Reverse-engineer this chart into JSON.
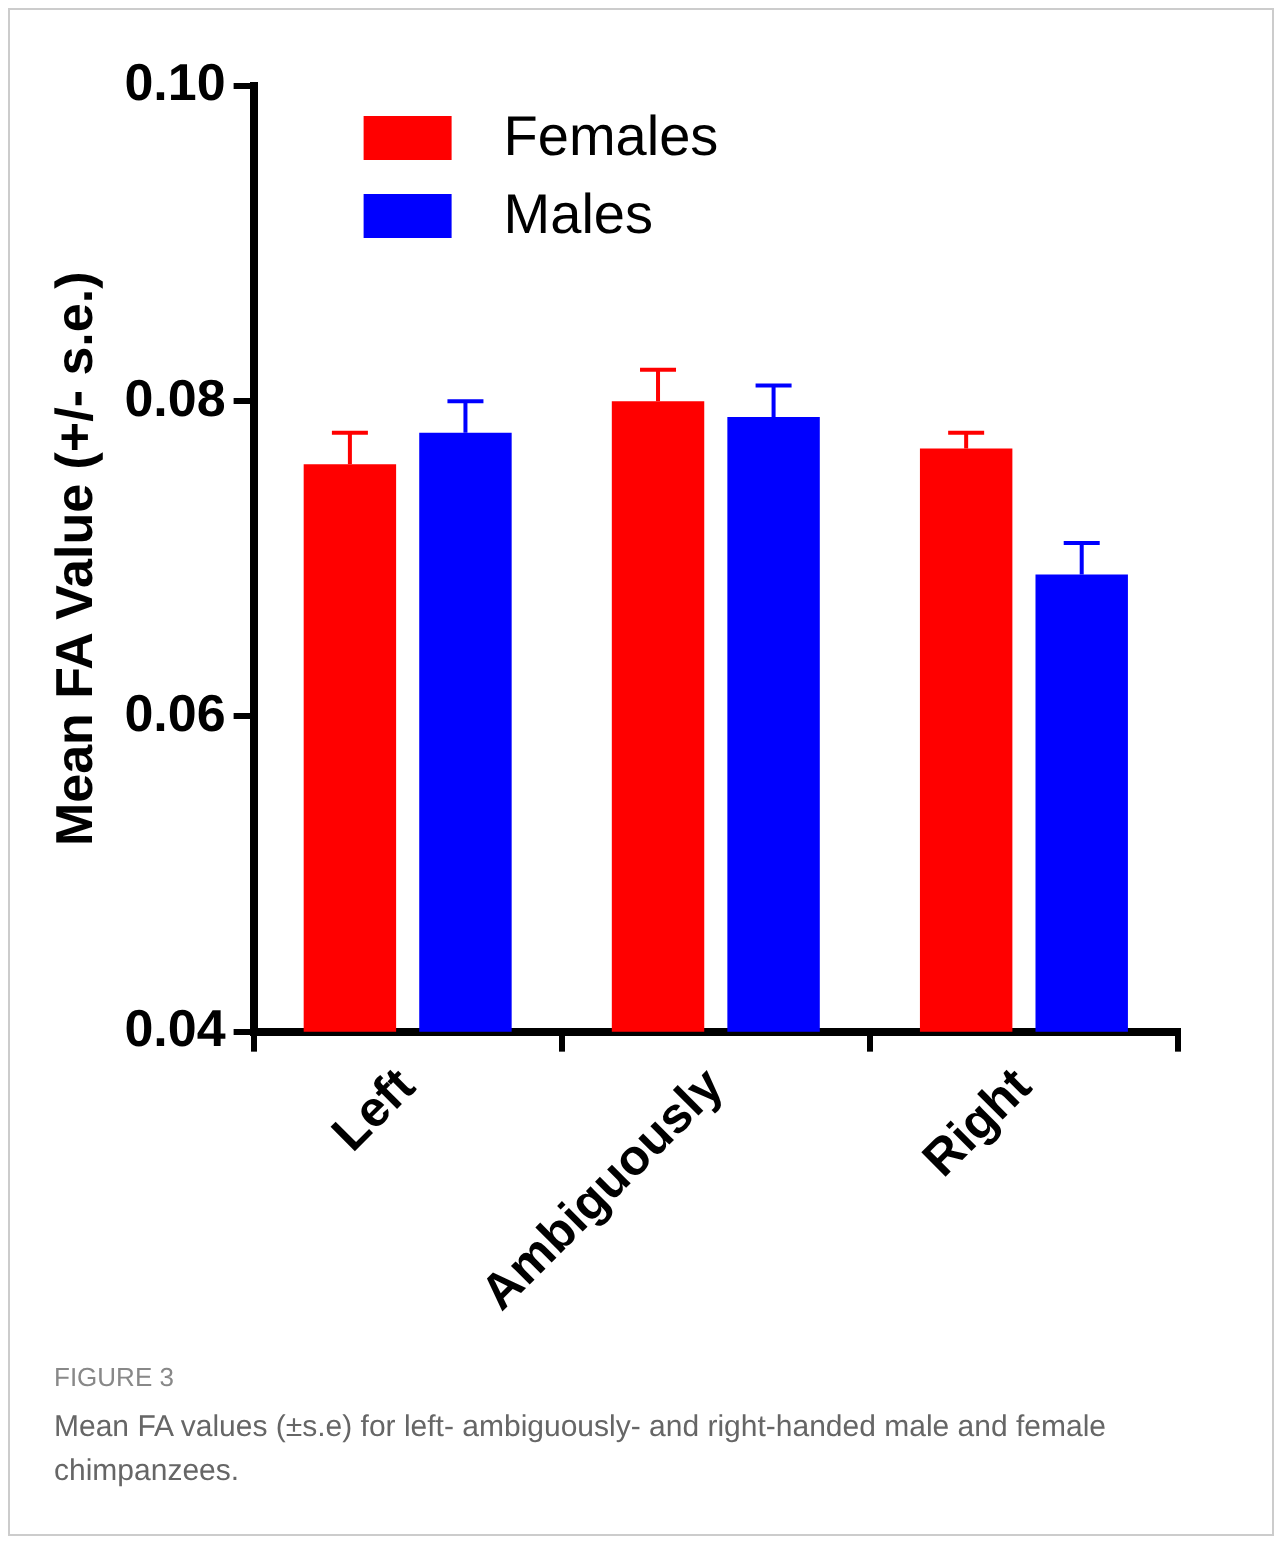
{
  "chart_data": {
    "type": "bar",
    "ylabel": "Mean FA Value (+/- s.e.)",
    "categories": [
      "Left",
      "Ambiguously",
      "Right"
    ],
    "series": [
      {
        "name": "Females",
        "color": "#ff0000",
        "values": [
          0.076,
          0.08,
          0.077
        ],
        "errors": [
          [
            0.076,
            0.078
          ],
          [
            0.08,
            0.082
          ],
          [
            0.077,
            0.078
          ]
        ]
      },
      {
        "name": "Males",
        "color": "#0000ff",
        "values": [
          0.078,
          0.079,
          0.069
        ],
        "errors": [
          [
            0.078,
            0.08
          ],
          [
            0.079,
            0.081
          ],
          [
            0.069,
            0.071
          ]
        ]
      }
    ],
    "ylim": [
      0.04,
      0.1
    ],
    "yticks": [
      0.04,
      0.06,
      0.08,
      {
        "value": 0.1,
        "label": "0.10"
      }
    ],
    "grid": false,
    "legend": "top left",
    "annotations": [
      "FIGURE 3",
      "Mean FA values (±s.e) for left- ambiguously- and right-handed male and female chimpanzees."
    ]
  }
}
